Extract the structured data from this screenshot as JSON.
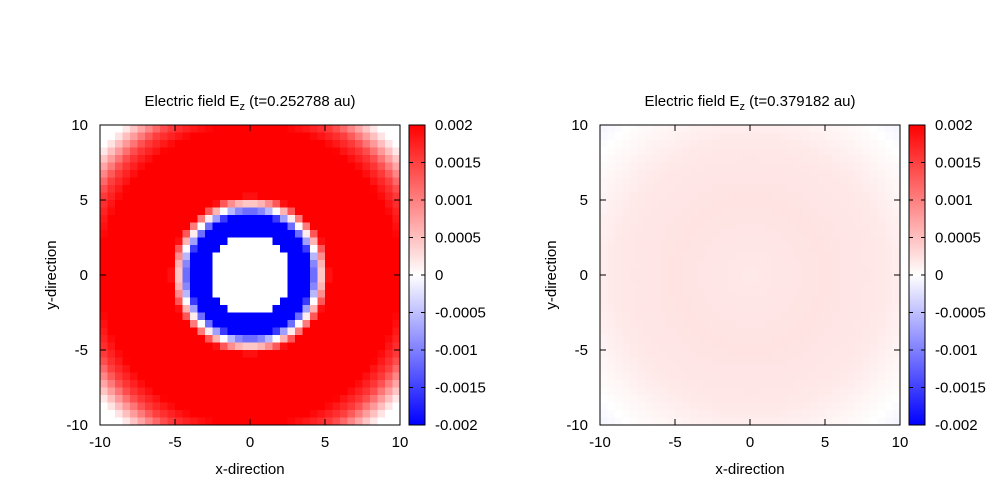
{
  "chart_data": [
    {
      "type": "heatmap",
      "title_prefix": "Electric field E",
      "title_sub": "z",
      "title_suffix": " (t=0.252788 au)",
      "xlabel": "x-direction",
      "ylabel": "y-direction",
      "xlim": [
        -10,
        10
      ],
      "ylim": [
        -10,
        10
      ],
      "xticks": [
        "-10",
        "-5",
        "0",
        "5",
        "10"
      ],
      "yticks": [
        "10",
        "5",
        "0",
        "-5",
        "-10"
      ],
      "colorbar": {
        "range": [
          -0.002,
          0.002
        ],
        "ticks": [
          "0.002",
          "0.0015",
          "0.001",
          "0.0005",
          "0",
          "-0.0005",
          "-0.001",
          "-0.0015",
          "-0.002"
        ],
        "colors": [
          "#0000ff",
          "#ffffff",
          "#ff0000"
        ]
      },
      "field": {
        "description_of_values": "Ez(r)",
        "radial_profile": [
          [
            0,
            0
          ],
          [
            2.6,
            0
          ],
          [
            2.7,
            -0.002
          ],
          [
            4.0,
            -0.002
          ],
          [
            4.6,
            0
          ],
          [
            5.3,
            0.002
          ],
          [
            10.0,
            0.002
          ],
          [
            11.2,
            0.0015
          ],
          [
            13.0,
            0
          ]
        ]
      },
      "grid": false,
      "legend": "colorbar-right"
    },
    {
      "type": "heatmap",
      "title_prefix": "Electric field E",
      "title_sub": "z",
      "title_suffix": " (t=0.379182 au)",
      "xlabel": "x-direction",
      "ylabel": "y-direction",
      "xlim": [
        -10,
        10
      ],
      "ylim": [
        -10,
        10
      ],
      "xticks": [
        "-10",
        "-5",
        "0",
        "5",
        "10"
      ],
      "yticks": [
        "10",
        "5",
        "0",
        "-5",
        "-10"
      ],
      "colorbar": {
        "range": [
          -0.002,
          0.002
        ],
        "ticks": [
          "0.002",
          "0.0015",
          "0.001",
          "0.0005",
          "0",
          "-0.0005",
          "-0.001",
          "-0.0015",
          "-0.002"
        ],
        "colors": [
          "#0000ff",
          "#ffffff",
          "#ff0000"
        ]
      },
      "field": {
        "description_of_values": "Ez(r)",
        "radial_profile": [
          [
            0,
            0.00018
          ],
          [
            5,
            0.00022
          ],
          [
            9,
            0.00018
          ],
          [
            12.5,
            2e-05
          ],
          [
            14.2,
            -0.0001
          ]
        ]
      },
      "grid": false,
      "legend": "colorbar-right"
    }
  ]
}
